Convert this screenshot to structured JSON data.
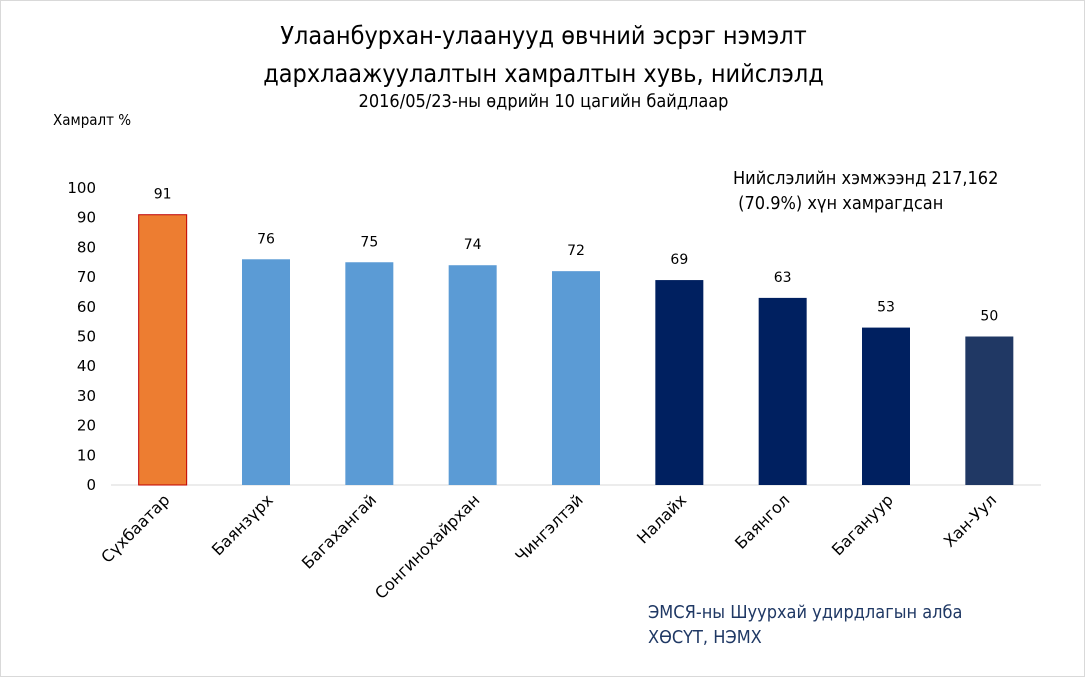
{
  "chart_data": {
    "type": "bar",
    "title": "Улаанбурхан-улаанууд өвчний эсрэг нэмэлт дархлаажуулалтын хамралтын хувь, нийслэлд",
    "title_lines": [
      "Улаанбурхан-улаанууд  өвчний эсрэг нэмэлт",
      "дархлаажуулалтын  хамралтын хувь, нийслэлд"
    ],
    "subtitle": "2016/05/23-ны өдрийн 10 цагийн байдлаар",
    "xlabel": "",
    "ylabel": "Хамралт %",
    "ylim": [
      0,
      100
    ],
    "yticks": [
      0,
      10,
      20,
      30,
      40,
      50,
      60,
      70,
      80,
      90,
      100
    ],
    "grid": false,
    "categories": [
      "Сүхбаатар",
      "Баянзүрх",
      "Багахангай",
      "Сонгинохайрхан",
      "Чингэлтэй",
      "Налайх",
      "Баянгол",
      "Багануур",
      "Хан-Уул"
    ],
    "values": [
      91,
      76,
      75,
      74,
      72,
      69,
      63,
      53,
      50
    ],
    "bar_colors": [
      "#ED7D31",
      "#5B9BD5",
      "#5B9BD5",
      "#5B9BD5",
      "#5B9BD5",
      "#002060",
      "#002060",
      "#002060",
      "#203864"
    ],
    "annotation_lines": [
      "Нийслэлийн хэмжээнд 217,162",
      " (70.9%) хүн хамрагдсан"
    ],
    "source_lines": [
      "ЭМСЯ-ны Шуурхай удирдлагын алба",
      "ХӨСҮТ, НЭМХ"
    ]
  }
}
